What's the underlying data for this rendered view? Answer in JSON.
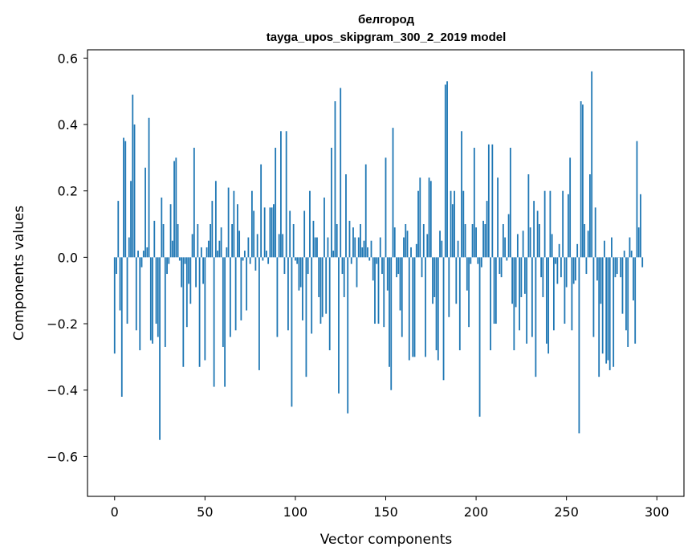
{
  "chart_data": {
    "type": "bar",
    "title": "белгород",
    "subtitle": "tayga_upos_skipgram_300_2_2019 model",
    "xlabel": "Vector components",
    "ylabel": "Components values",
    "xlim": [
      -15,
      315
    ],
    "ylim": [
      -0.72,
      0.625
    ],
    "xticks": [
      0,
      50,
      100,
      150,
      200,
      250,
      300
    ],
    "yticks": [
      -0.6,
      -0.4,
      -0.2,
      0.0,
      0.2,
      0.4,
      0.6
    ],
    "ytick_labels": [
      "−0.6",
      "−0.4",
      "−0.2",
      "0.0",
      "0.2",
      "0.4",
      "0.6"
    ],
    "xtick_labels": [
      "0",
      "50",
      "100",
      "150",
      "200",
      "250",
      "300"
    ],
    "bar_color": "#1f77b4",
    "grid": false,
    "values": [
      -0.29,
      -0.05,
      0.17,
      -0.16,
      -0.42,
      0.36,
      0.35,
      -0.2,
      0.06,
      0.23,
      0.49,
      0.4,
      -0.22,
      0.02,
      -0.28,
      -0.03,
      0.02,
      0.27,
      0.03,
      0.42,
      -0.25,
      -0.26,
      0.11,
      -0.2,
      -0.24,
      -0.55,
      0.18,
      0.1,
      -0.27,
      -0.05,
      -0.02,
      0.16,
      0.05,
      0.29,
      0.3,
      0.1,
      -0.01,
      -0.09,
      -0.33,
      -0.02,
      -0.21,
      -0.08,
      -0.14,
      0.07,
      0.33,
      -0.09,
      0.1,
      -0.33,
      0.03,
      -0.08,
      -0.31,
      0.03,
      0.05,
      0.1,
      0.17,
      -0.39,
      0.23,
      0.02,
      0.05,
      0.09,
      -0.27,
      -0.39,
      0.03,
      0.21,
      -0.24,
      0.1,
      0.2,
      -0.22,
      0.16,
      0.08,
      -0.19,
      -0.01,
      0.02,
      -0.16,
      0.06,
      -0.02,
      0.2,
      0.14,
      -0.04,
      0.07,
      -0.34,
      0.28,
      -0.01,
      0.15,
      0.02,
      -0.02,
      0.15,
      0.15,
      0.16,
      0.33,
      -0.24,
      0.07,
      0.38,
      0.07,
      -0.05,
      0.38,
      -0.22,
      0.14,
      -0.45,
      0.1,
      -0.01,
      -0.02,
      -0.1,
      -0.09,
      -0.19,
      0.14,
      -0.36,
      -0.05,
      0.2,
      -0.23,
      0.11,
      0.06,
      0.06,
      -0.12,
      -0.2,
      -0.18,
      0.18,
      -0.17,
      0.06,
      -0.28,
      0.33,
      0.02,
      0.47,
      0.1,
      -0.41,
      0.51,
      -0.05,
      -0.12,
      0.25,
      -0.47,
      0.11,
      -0.02,
      0.09,
      0.06,
      -0.09,
      0.06,
      0.1,
      0.03,
      0.05,
      0.28,
      0.03,
      -0.01,
      0.05,
      -0.07,
      -0.2,
      -0.02,
      -0.2,
      0.06,
      -0.05,
      -0.21,
      0.3,
      -0.1,
      -0.33,
      -0.4,
      0.39,
      0.09,
      -0.06,
      -0.05,
      -0.16,
      -0.24,
      0.06,
      0.1,
      0.08,
      -0.31,
      0.03,
      -0.3,
      -0.3,
      0.04,
      0.2,
      0.24,
      -0.06,
      0.1,
      -0.3,
      0.07,
      0.24,
      0.23,
      -0.14,
      -0.12,
      -0.28,
      -0.31,
      0.08,
      0.05,
      -0.37,
      0.52,
      0.53,
      -0.18,
      0.2,
      0.16,
      0.2,
      -0.14,
      0.05,
      -0.28,
      0.38,
      0.2,
      0.1,
      -0.1,
      -0.21,
      -0.02,
      0.1,
      0.33,
      0.09,
      -0.02,
      -0.48,
      -0.03,
      0.11,
      0.1,
      0.17,
      0.34,
      -0.28,
      0.34,
      -0.2,
      -0.2,
      0.24,
      -0.05,
      -0.06,
      0.1,
      0.06,
      -0.01,
      0.13,
      0.33,
      -0.14,
      -0.28,
      -0.15,
      0.07,
      -0.22,
      -0.12,
      0.08,
      -0.11,
      -0.26,
      0.25,
      0.09,
      -0.24,
      0.17,
      -0.36,
      0.14,
      0.1,
      -0.06,
      -0.12,
      0.2,
      -0.26,
      -0.29,
      0.2,
      0.07,
      -0.22,
      -0.02,
      -0.08,
      0.04,
      -0.06,
      0.2,
      -0.2,
      -0.09,
      0.19,
      0.3,
      -0.22,
      -0.08,
      -0.07,
      0.04,
      -0.53,
      0.47,
      0.46,
      0.1,
      -0.05,
      0.08,
      0.25,
      0.56,
      -0.24,
      0.15,
      -0.07,
      -0.36,
      -0.14,
      -0.29,
      0.05,
      -0.32,
      -0.31,
      -0.34,
      0.06,
      -0.33,
      -0.06,
      -0.05,
      0.0,
      -0.06,
      -0.17,
      0.02,
      -0.22,
      -0.27,
      0.06,
      0.02,
      -0.13,
      -0.26,
      0.35,
      0.09,
      0.19,
      -0.03
    ]
  }
}
